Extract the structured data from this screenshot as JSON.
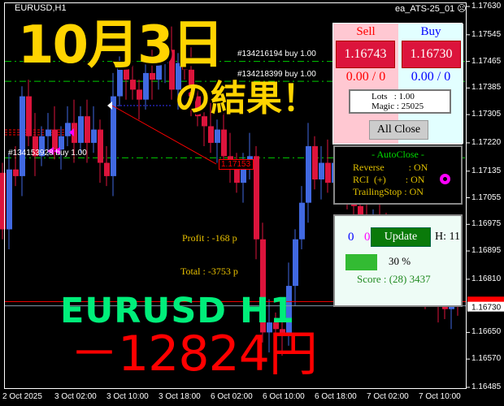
{
  "window": {
    "symbol": "EURUSD,H1",
    "ea_name": "ea_ATS-25_01",
    "ea_icon": "frown-face-icon"
  },
  "colors": {
    "bull": "#4169e1",
    "bear": "#dc143c",
    "grid_green": "#00cc00",
    "accent_sell": "#dc143c"
  },
  "price_axis": [
    "1.17630",
    "1.17545",
    "1.17465",
    "1.17385",
    "1.17305",
    "1.17220",
    "1.17135",
    "1.17055",
    "1.16975",
    "1.16895",
    "1.16810",
    "1.16650",
    "1.16570",
    "1.16485"
  ],
  "bid_label": "1.16743",
  "ask_label": "1.16730",
  "time_axis": [
    "2 Oct 2025",
    "3 Oct 02:00",
    "3 Oct 10:00",
    "3 Oct 18:00",
    "6 Oct 02:00",
    "6 Oct 10:00",
    "6 Oct 18:00",
    "7 Oct 02:00",
    "7 Oct 10:00"
  ],
  "orders": [
    "#134216194 buy 1.00",
    "#134218399 buy 1.00",
    "#134153928 buy 1.00"
  ],
  "order_prices": [
    1.17465,
    1.17405,
    1.17175
  ],
  "close_label": "1.17153",
  "candles": {
    "first_open": 1.1713,
    "close": [
      1.1696,
      1.1714,
      1.1712,
      1.1736,
      1.1724,
      1.1718,
      1.1724,
      1.1726,
      1.172,
      1.1724,
      1.1728,
      1.1722,
      1.173,
      1.1722,
      1.1726,
      1.1716,
      1.1712,
      1.1736,
      1.1745,
      1.1741,
      1.1738,
      1.1735,
      1.1743,
      1.1741,
      1.1746,
      1.175,
      1.1738,
      1.1746,
      1.1744,
      1.1736,
      1.173,
      1.1727,
      1.1722,
      1.1726,
      1.1718,
      1.1716,
      1.171,
      1.1714,
      1.1718,
      1.1693,
      1.1665,
      1.1668,
      1.1666,
      1.1664,
      1.1679,
      1.1693,
      1.1704,
      1.1721,
      1.1711,
      1.1716,
      1.171,
      1.1716,
      1.1712,
      1.1708,
      1.1703,
      1.17,
      1.1697,
      1.1699,
      1.1694,
      1.169,
      1.1688,
      1.1686,
      1.1684,
      1.1682,
      1.168,
      1.1678,
      1.1676,
      1.1674,
      1.1672,
      1.1674,
      1.1673
    ]
  },
  "trade_panel": {
    "sell_label": "Sell",
    "buy_label": "Buy",
    "sell_price": "1.16743",
    "buy_price": "1.16730",
    "sell_pos": "0.00 / 0",
    "buy_pos": "0.00 / 0",
    "lots": "Lots   : 1.00",
    "magic": "Magic : 25025",
    "all_close": "All Close"
  },
  "autoclose": {
    "title": "- AutoClose -",
    "rows": [
      "Reverse          : ON",
      "RCI  (+)        : ON",
      "TrailingStop : ON"
    ]
  },
  "status_panel": {
    "count_blue": "0",
    "count_magenta": "0",
    "update": "Update",
    "h": "H: 11",
    "progress": 30,
    "progress_label": "30 %",
    "score": "Score : (28) 3437"
  },
  "info": {
    "profit": "Profit : -168 p",
    "total": "Total : -3753 p"
  },
  "overlay": {
    "date": "10月3日",
    "result": "の結果！",
    "pair": "EURUSD H1",
    "amount": "－12824円"
  }
}
